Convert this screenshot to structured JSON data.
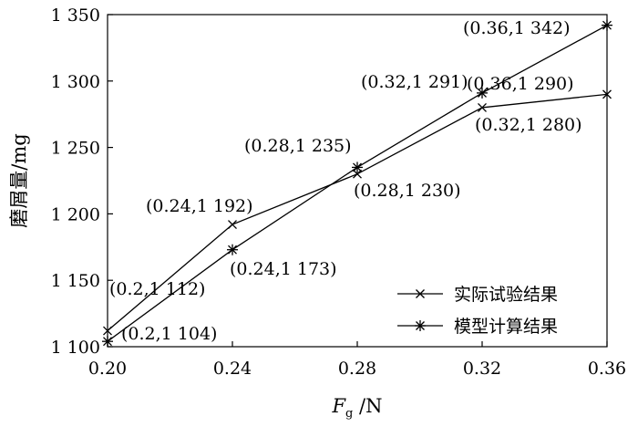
{
  "chart_data": {
    "type": "line",
    "xlabel_main": "F",
    "xlabel_sub": "g",
    "xlabel_unit": " /N",
    "ylabel": "磨屑量/mg",
    "x_ticks": [
      "0.20",
      "0.24",
      "0.28",
      "0.32",
      "0.36"
    ],
    "y_ticks": [
      "1 100",
      "1 150",
      "1 200",
      "1 250",
      "1 300",
      "1 350"
    ],
    "xlim": [
      0.2,
      0.36
    ],
    "ylim": [
      1100,
      1350
    ],
    "grid": false,
    "legend_position": "bottom-right",
    "x": [
      0.2,
      0.24,
      0.28,
      0.32,
      0.36
    ],
    "series": [
      {
        "name": "实际试验结果",
        "marker": "x",
        "values": [
          1112,
          1192,
          1230,
          1280,
          1290
        ],
        "labels": [
          "(0.2,1 112)",
          "(0.24,1 192)",
          "(0.28,1 230)",
          "(0.32,1 280)",
          "(0.36,1 290)"
        ]
      },
      {
        "name": "模型计算结果",
        "marker": "asterisk",
        "values": [
          1104,
          1173,
          1235,
          1291,
          1342
        ],
        "labels": [
          "(0.2,1 104)",
          "(0.24,1 173)",
          "(0.28,1 235)",
          "(0.32,1 291)",
          "(0.36,1 342)"
        ]
      }
    ]
  }
}
